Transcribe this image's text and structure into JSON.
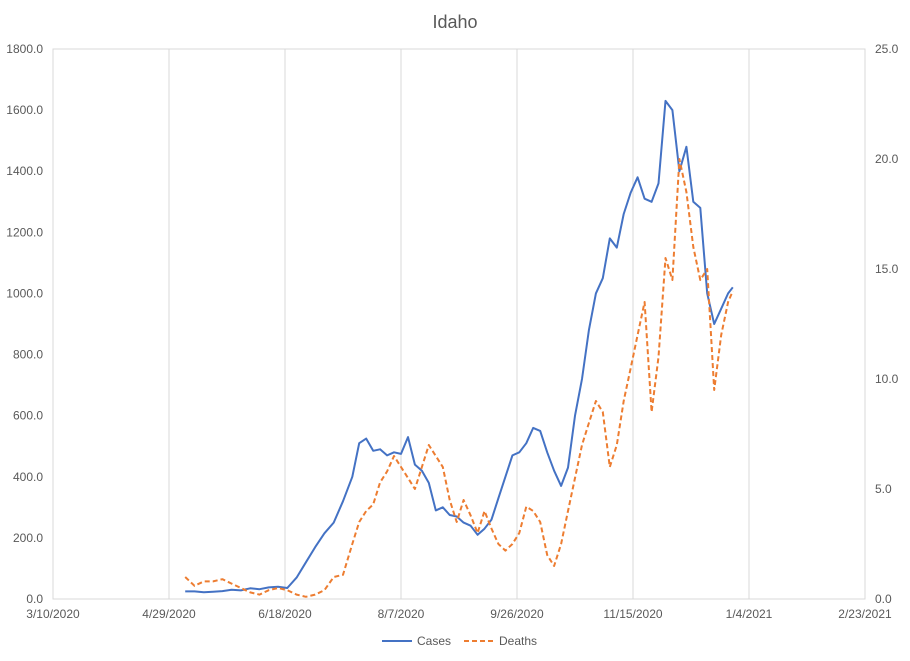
{
  "chart_data": {
    "type": "line",
    "title": "Idaho",
    "x_ticks": [
      "3/10/2020",
      "4/29/2020",
      "6/18/2020",
      "8/7/2020",
      "9/26/2020",
      "11/15/2020",
      "1/4/2021",
      "2/23/2021"
    ],
    "y_ticks_left": [
      "0.0",
      "200.0",
      "400.0",
      "600.0",
      "800.0",
      "1000.0",
      "1200.0",
      "1400.0",
      "1600.0",
      "1800.0"
    ],
    "y_ticks_right": [
      "0.0",
      "5.0",
      "10.0",
      "15.0",
      "20.0",
      "25.0"
    ],
    "ylim_left": [
      0,
      1800
    ],
    "ylim_right": [
      0,
      25
    ],
    "grid": "vertical",
    "legend_position": "bottom",
    "series": [
      {
        "name": "Cases",
        "axis": "left",
        "color": "#4472C4",
        "style": "solid",
        "x": [
          "5/6/2020",
          "5/10/2020",
          "5/14/2020",
          "5/18/2020",
          "5/22/2020",
          "5/26/2020",
          "5/30/2020",
          "6/3/2020",
          "6/7/2020",
          "6/11/2020",
          "6/15/2020",
          "6/19/2020",
          "6/23/2020",
          "6/27/2020",
          "7/1/2020",
          "7/5/2020",
          "7/9/2020",
          "7/13/2020",
          "7/17/2020",
          "7/20/2020",
          "7/23/2020",
          "7/26/2020",
          "7/29/2020",
          "8/1/2020",
          "8/4/2020",
          "8/7/2020",
          "8/10/2020",
          "8/13/2020",
          "8/16/2020",
          "8/19/2020",
          "8/22/2020",
          "8/25/2020",
          "8/28/2020",
          "8/31/2020",
          "9/3/2020",
          "9/6/2020",
          "9/9/2020",
          "9/12/2020",
          "9/15/2020",
          "9/18/2020",
          "9/21/2020",
          "9/24/2020",
          "9/27/2020",
          "9/30/2020",
          "10/3/2020",
          "10/6/2020",
          "10/9/2020",
          "10/12/2020",
          "10/15/2020",
          "10/18/2020",
          "10/21/2020",
          "10/24/2020",
          "10/27/2020",
          "10/30/2020",
          "11/2/2020",
          "11/5/2020",
          "11/8/2020",
          "11/11/2020",
          "11/14/2020",
          "11/17/2020",
          "11/20/2020",
          "11/23/2020",
          "11/26/2020",
          "11/29/2020",
          "12/2/2020",
          "12/5/2020",
          "12/8/2020",
          "12/11/2020",
          "12/14/2020",
          "12/17/2020",
          "12/20/2020",
          "12/23/2020",
          "12/26/2020",
          "12/28/2020"
        ],
        "y": [
          25,
          25,
          22,
          24,
          26,
          30,
          28,
          35,
          32,
          38,
          40,
          36,
          70,
          120,
          170,
          215,
          250,
          320,
          400,
          510,
          525,
          485,
          490,
          470,
          480,
          475,
          530,
          440,
          420,
          380,
          290,
          300,
          275,
          270,
          250,
          240,
          210,
          230,
          260,
          330,
          400,
          470,
          480,
          510,
          560,
          550,
          480,
          420,
          370,
          430,
          600,
          720,
          880,
          1000,
          1050,
          1180,
          1150,
          1260,
          1330,
          1380,
          1310,
          1300,
          1360,
          1630,
          1600,
          1400,
          1480,
          1300,
          1280,
          1000,
          900,
          950,
          1000,
          1020
        ]
      },
      {
        "name": "Deaths",
        "axis": "right",
        "color": "#ED7D31",
        "style": "dashed",
        "x": [
          "5/6/2020",
          "5/10/2020",
          "5/14/2020",
          "5/18/2020",
          "5/22/2020",
          "5/26/2020",
          "5/30/2020",
          "6/3/2020",
          "6/7/2020",
          "6/11/2020",
          "6/15/2020",
          "6/19/2020",
          "6/23/2020",
          "6/27/2020",
          "7/1/2020",
          "7/5/2020",
          "7/9/2020",
          "7/13/2020",
          "7/17/2020",
          "7/20/2020",
          "7/23/2020",
          "7/26/2020",
          "7/29/2020",
          "8/1/2020",
          "8/4/2020",
          "8/7/2020",
          "8/10/2020",
          "8/13/2020",
          "8/16/2020",
          "8/19/2020",
          "8/22/2020",
          "8/25/2020",
          "8/28/2020",
          "8/31/2020",
          "9/3/2020",
          "9/6/2020",
          "9/9/2020",
          "9/12/2020",
          "9/15/2020",
          "9/18/2020",
          "9/21/2020",
          "9/24/2020",
          "9/27/2020",
          "9/30/2020",
          "10/3/2020",
          "10/6/2020",
          "10/9/2020",
          "10/12/2020",
          "10/15/2020",
          "10/18/2020",
          "10/21/2020",
          "10/24/2020",
          "10/27/2020",
          "10/30/2020",
          "11/2/2020",
          "11/5/2020",
          "11/8/2020",
          "11/11/2020",
          "11/14/2020",
          "11/17/2020",
          "11/20/2020",
          "11/23/2020",
          "11/26/2020",
          "11/29/2020",
          "12/2/2020",
          "12/5/2020",
          "12/8/2020",
          "12/11/2020",
          "12/14/2020",
          "12/17/2020",
          "12/20/2020",
          "12/23/2020",
          "12/26/2020",
          "12/28/2020"
        ],
        "y": [
          1.0,
          0.6,
          0.8,
          0.8,
          0.9,
          0.7,
          0.5,
          0.3,
          0.2,
          0.4,
          0.5,
          0.4,
          0.2,
          0.1,
          0.2,
          0.4,
          1.0,
          1.1,
          2.5,
          3.5,
          4.0,
          4.3,
          5.3,
          5.8,
          6.5,
          6.0,
          5.5,
          5.0,
          6.0,
          7.0,
          6.5,
          6.0,
          4.5,
          3.5,
          4.5,
          3.8,
          3.0,
          4.0,
          3.2,
          2.5,
          2.2,
          2.5,
          3.0,
          4.2,
          4.0,
          3.5,
          2.0,
          1.5,
          2.5,
          4.0,
          5.5,
          7.0,
          8.0,
          9.0,
          8.5,
          6.0,
          7.0,
          9.0,
          10.5,
          12.0,
          13.5,
          8.5,
          11.0,
          15.5,
          14.5,
          20.0,
          18.5,
          16.0,
          14.5,
          15.0,
          9.5,
          12.0,
          13.5,
          14.0
        ]
      }
    ]
  }
}
